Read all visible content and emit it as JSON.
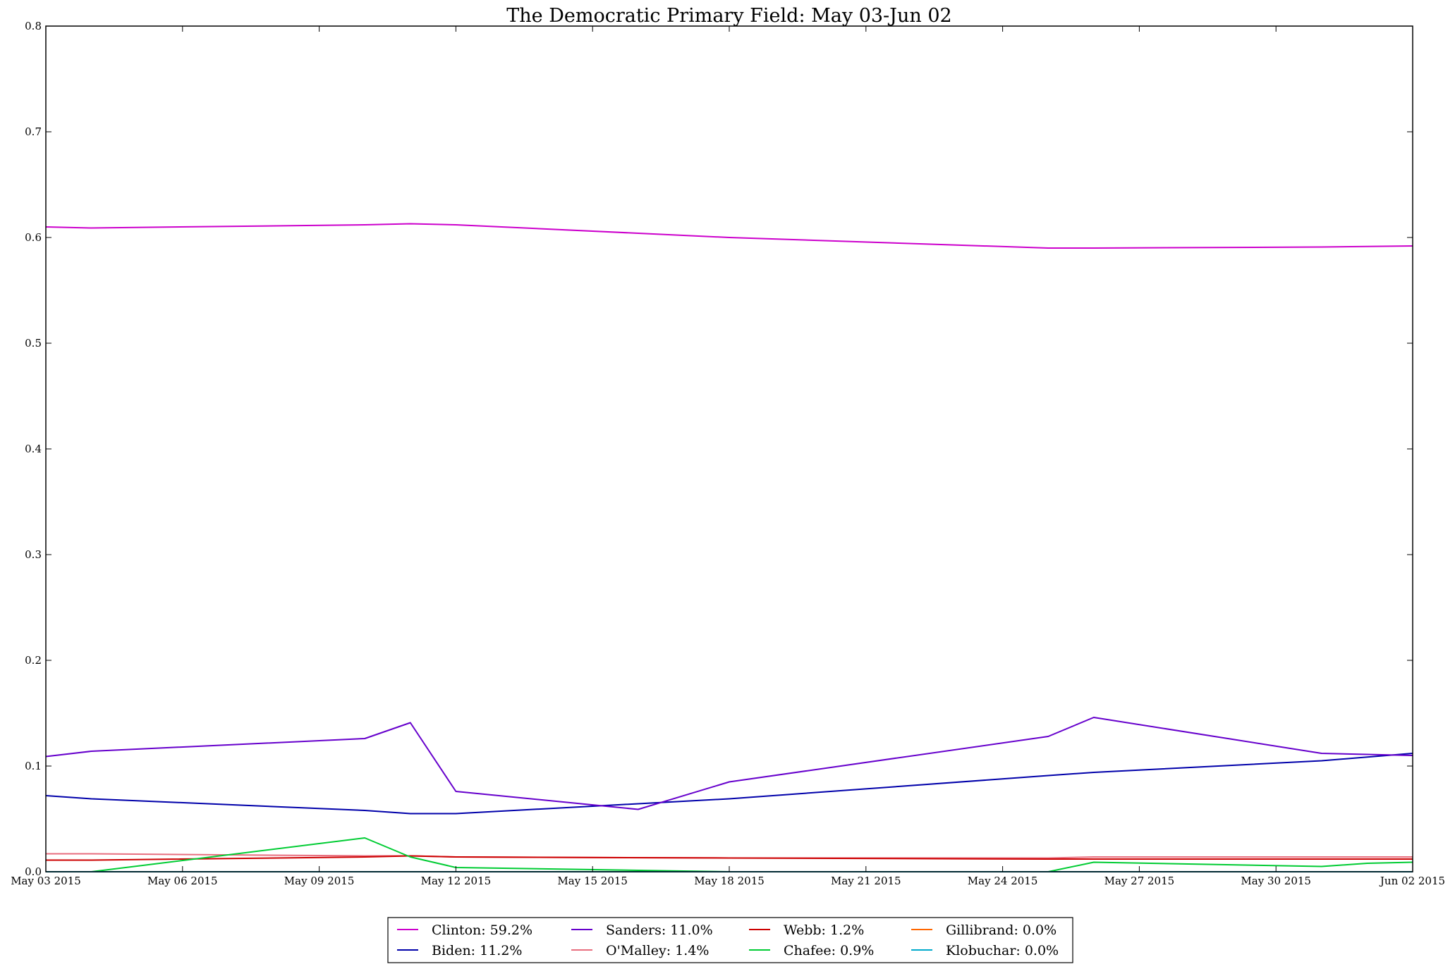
{
  "chart_data": {
    "type": "line",
    "title": "The Democratic Primary Field: May 03-Jun 02",
    "xlabel": "",
    "ylabel": "",
    "xlim": [
      "2015-05-03",
      "2015-06-02"
    ],
    "ylim": [
      0,
      0.8
    ],
    "x_ticks": [
      "2015-05-03",
      "2015-05-06",
      "2015-05-09",
      "2015-05-12",
      "2015-05-15",
      "2015-05-18",
      "2015-05-21",
      "2015-05-24",
      "2015-05-27",
      "2015-05-30",
      "2015-06-02"
    ],
    "x_tick_labels": [
      "May 03 2015",
      "May 06 2015",
      "May 09 2015",
      "May 12 2015",
      "May 15 2015",
      "May 18 2015",
      "May 21 2015",
      "May 24 2015",
      "May 27 2015",
      "May 30 2015",
      "Jun 02 2015"
    ],
    "y_ticks": [
      0.0,
      0.1,
      0.2,
      0.3,
      0.4,
      0.5,
      0.6,
      0.7,
      0.8
    ],
    "y_tick_labels": [
      "0.0",
      "0.1",
      "0.2",
      "0.3",
      "0.4",
      "0.5",
      "0.6",
      "0.7",
      "0.8"
    ],
    "grid": false,
    "legend_position": "bottom-center",
    "legend_columns": 4,
    "series": [
      {
        "name": "Clinton: 59.2%",
        "color": "#cc00cc",
        "points": [
          [
            "2015-05-03",
            0.61
          ],
          [
            "2015-05-04",
            0.609
          ],
          [
            "2015-05-10",
            0.612
          ],
          [
            "2015-05-11",
            0.613
          ],
          [
            "2015-05-12",
            0.612
          ],
          [
            "2015-05-18",
            0.6
          ],
          [
            "2015-05-25",
            0.59
          ],
          [
            "2015-05-26",
            0.59
          ],
          [
            "2015-05-31",
            0.591
          ],
          [
            "2015-06-02",
            0.592
          ]
        ]
      },
      {
        "name": "Biden: 11.2%",
        "color": "#0000aa",
        "points": [
          [
            "2015-05-03",
            0.072
          ],
          [
            "2015-05-04",
            0.069
          ],
          [
            "2015-05-10",
            0.058
          ],
          [
            "2015-05-11",
            0.055
          ],
          [
            "2015-05-12",
            0.055
          ],
          [
            "2015-05-18",
            0.069
          ],
          [
            "2015-05-25",
            0.091
          ],
          [
            "2015-05-26",
            0.094
          ],
          [
            "2015-05-31",
            0.105
          ],
          [
            "2015-06-02",
            0.112
          ]
        ]
      },
      {
        "name": "Sanders: 11.0%",
        "color": "#6600cc",
        "points": [
          [
            "2015-05-03",
            0.109
          ],
          [
            "2015-05-04",
            0.114
          ],
          [
            "2015-05-10",
            0.126
          ],
          [
            "2015-05-11",
            0.141
          ],
          [
            "2015-05-12",
            0.076
          ],
          [
            "2015-05-16",
            0.059
          ],
          [
            "2015-05-18",
            0.085
          ],
          [
            "2015-05-25",
            0.128
          ],
          [
            "2015-05-26",
            0.146
          ],
          [
            "2015-05-31",
            0.112
          ],
          [
            "2015-06-02",
            0.11
          ]
        ]
      },
      {
        "name": "O'Malley: 1.4%",
        "color": "#e86e7e",
        "points": [
          [
            "2015-05-03",
            0.017
          ],
          [
            "2015-05-04",
            0.017
          ],
          [
            "2015-05-10",
            0.015
          ],
          [
            "2015-05-11",
            0.015
          ],
          [
            "2015-05-12",
            0.014
          ],
          [
            "2015-05-18",
            0.013
          ],
          [
            "2015-05-25",
            0.013
          ],
          [
            "2015-05-26",
            0.014
          ],
          [
            "2015-05-31",
            0.014
          ],
          [
            "2015-06-02",
            0.014
          ]
        ]
      },
      {
        "name": "Webb: 1.2%",
        "color": "#cc0000",
        "points": [
          [
            "2015-05-03",
            0.011
          ],
          [
            "2015-05-04",
            0.011
          ],
          [
            "2015-05-10",
            0.014
          ],
          [
            "2015-05-11",
            0.015
          ],
          [
            "2015-05-12",
            0.014
          ],
          [
            "2015-05-18",
            0.013
          ],
          [
            "2015-05-25",
            0.012
          ],
          [
            "2015-05-26",
            0.012
          ],
          [
            "2015-05-31",
            0.012
          ],
          [
            "2015-06-02",
            0.012
          ]
        ]
      },
      {
        "name": "Chafee: 0.9%",
        "color": "#00cc33",
        "points": [
          [
            "2015-05-03",
            0.0
          ],
          [
            "2015-05-04",
            0.0
          ],
          [
            "2015-05-10",
            0.032
          ],
          [
            "2015-05-11",
            0.014
          ],
          [
            "2015-05-12",
            0.004
          ],
          [
            "2015-05-18",
            0.0
          ],
          [
            "2015-05-25",
            0.0
          ],
          [
            "2015-05-26",
            0.009
          ],
          [
            "2015-05-31",
            0.005
          ],
          [
            "2015-06-01",
            0.008
          ],
          [
            "2015-06-02",
            0.009
          ]
        ]
      },
      {
        "name": "Gillibrand: 0.0%",
        "color": "#ff6600",
        "points": [
          [
            "2015-05-03",
            0.0
          ],
          [
            "2015-06-02",
            0.0
          ]
        ]
      },
      {
        "name": "Klobuchar: 0.0%",
        "color": "#00aacc",
        "points": [
          [
            "2015-05-03",
            0.0
          ],
          [
            "2015-06-02",
            0.0
          ]
        ]
      }
    ]
  }
}
